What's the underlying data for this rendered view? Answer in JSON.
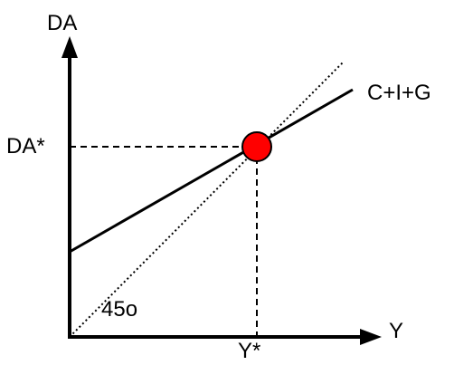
{
  "labels": {
    "y_axis": "DA",
    "x_axis": "Y",
    "equilibrium_y_value": "DA*",
    "equilibrium_x_value": "Y*",
    "aggregate_demand_line": "C+I+G",
    "reference_line_angle": "45o"
  },
  "colors": {
    "equilibrium_point": "#ff0000",
    "lines": "#000000"
  }
}
